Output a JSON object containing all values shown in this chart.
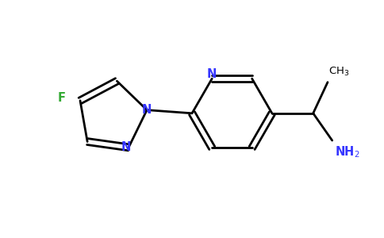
{
  "bg_color": "#ffffff",
  "bond_color": "#000000",
  "N_color": "#3535ff",
  "F_color": "#33aa33",
  "lw": 2.0,
  "figsize": [
    4.84,
    3.0
  ],
  "dpi": 100,
  "xlim": [
    -3.5,
    3.2
  ],
  "ylim": [
    -1.6,
    1.6
  ]
}
